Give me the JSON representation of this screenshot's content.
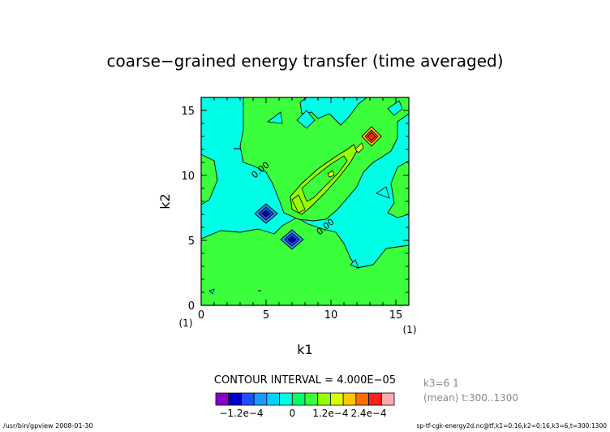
{
  "chart_data": {
    "type": "heatmap",
    "title": "coarse−grained energy transfer (time averaged)",
    "xlabel": "k1",
    "ylabel": "k2",
    "xlim": [
      0,
      16
    ],
    "ylim": [
      0,
      16
    ],
    "x_ticks": [
      "0",
      "5",
      "10",
      "15"
    ],
    "y_ticks": [
      "0",
      "5",
      "10",
      "15"
    ],
    "x_axis_note": "(1)",
    "y_axis_note": "(1)",
    "contour_labels": [
      "0.00",
      "0.00"
    ],
    "contour_interval_text": "CONTOUR INTERVAL = 4.000E−05",
    "colorbar": {
      "colors": [
        "#8a00c8",
        "#0000c8",
        "#1f50ff",
        "#1f96ff",
        "#00d2ff",
        "#00ffe6",
        "#00ff64",
        "#3cff3c",
        "#96ff00",
        "#dcff00",
        "#ffc800",
        "#ff6e00",
        "#ff1e1e",
        "#ffaaaa"
      ],
      "tick_labels": [
        "−1.2e−4",
        "0",
        "1.2e−4",
        "2.4e−4"
      ]
    },
    "side_info": [
      "k3=6 1",
      "(mean) t:300..1300"
    ],
    "footer_left": "/usr/bin/gpview  2008-01-30",
    "footer_right": "sp-tf-cgk-energy2d.nc@tf,k1=0:16,k2=0:16,k3=6,t=300:1300",
    "levels": [
      {
        "name": "background",
        "value_range": "-4e-5..0",
        "color": "#00ffe6"
      },
      {
        "name": "positive-band",
        "value_range": "0..4e-5",
        "color": "#3cff3c"
      },
      {
        "name": "ridge",
        "value_range": "4e-5..8e-5",
        "color": "#96ff00"
      },
      {
        "name": "ridge-core",
        "value_range": "8e-5..1.2e-4",
        "color": "#dcff00"
      },
      {
        "name": "peak",
        "k1": 13,
        "k2": 13,
        "approx_value": 0.00026
      },
      {
        "name": "minimum-a",
        "k1": 5,
        "k2": 7,
        "approx_value": -0.00012
      },
      {
        "name": "minimum-b",
        "k1": 7,
        "k2": 5,
        "approx_value": -0.00012
      }
    ]
  }
}
